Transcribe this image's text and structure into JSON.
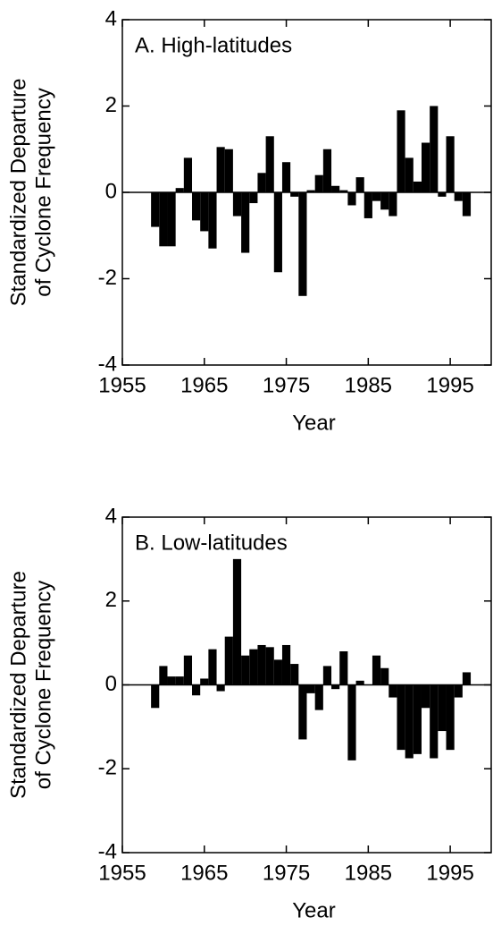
{
  "chart_data": [
    {
      "type": "bar",
      "annotation": "A. High-latitudes",
      "xlabel": "Year",
      "ylabel": [
        "Standardized Departure",
        "of Cyclone Frequency"
      ],
      "x": [
        1959,
        1960,
        1961,
        1962,
        1963,
        1964,
        1965,
        1966,
        1967,
        1968,
        1969,
        1970,
        1971,
        1972,
        1973,
        1974,
        1975,
        1976,
        1977,
        1978,
        1979,
        1980,
        1981,
        1982,
        1983,
        1984,
        1985,
        1986,
        1987,
        1988,
        1989,
        1990,
        1991,
        1992,
        1993,
        1994,
        1995,
        1996,
        1997
      ],
      "values": [
        -0.8,
        -1.25,
        -1.25,
        0.1,
        0.8,
        -0.65,
        -0.9,
        -1.3,
        1.05,
        1.0,
        -0.55,
        -1.4,
        -0.25,
        0.45,
        1.3,
        -1.85,
        0.7,
        -0.1,
        -2.4,
        0.05,
        0.4,
        1.0,
        0.15,
        0.05,
        -0.3,
        0.35,
        -0.6,
        -0.2,
        -0.4,
        -0.55,
        1.9,
        0.8,
        0.25,
        1.15,
        2.0,
        -0.1,
        1.3,
        -0.2,
        -0.55
      ],
      "color": "#000000",
      "xlim": [
        1955,
        2000
      ],
      "xticks": [
        1955,
        1965,
        1975,
        1985,
        1995
      ],
      "ylim": [
        -4,
        4
      ],
      "yticks": [
        -4,
        -2,
        0,
        2,
        4
      ]
    },
    {
      "type": "bar",
      "annotation": "B. Low-latitudes",
      "xlabel": "Year",
      "ylabel": [
        "Standardized Departure",
        "of Cyclone Frequency"
      ],
      "x": [
        1959,
        1960,
        1961,
        1962,
        1963,
        1964,
        1965,
        1966,
        1967,
        1968,
        1969,
        1970,
        1971,
        1972,
        1973,
        1974,
        1975,
        1976,
        1977,
        1978,
        1979,
        1980,
        1981,
        1982,
        1983,
        1984,
        1985,
        1986,
        1987,
        1988,
        1989,
        1990,
        1991,
        1992,
        1993,
        1994,
        1995,
        1996,
        1997
      ],
      "values": [
        -0.55,
        0.45,
        0.2,
        0.2,
        0.7,
        -0.25,
        0.15,
        0.85,
        -0.15,
        1.15,
        3.0,
        0.7,
        0.85,
        0.95,
        0.9,
        0.6,
        0.95,
        0.5,
        -1.3,
        -0.2,
        -0.6,
        0.45,
        -0.1,
        0.8,
        -1.8,
        0.1,
        0.0,
        0.7,
        0.4,
        -0.3,
        -1.55,
        -1.75,
        -1.65,
        -0.55,
        -1.75,
        -1.1,
        -1.55,
        -0.3,
        0.3
      ],
      "color": "#000000",
      "xlim": [
        1955,
        2000
      ],
      "xticks": [
        1955,
        1965,
        1975,
        1985,
        1995
      ],
      "ylim": [
        -4,
        4
      ],
      "yticks": [
        -4,
        -2,
        0,
        2,
        4
      ]
    }
  ]
}
